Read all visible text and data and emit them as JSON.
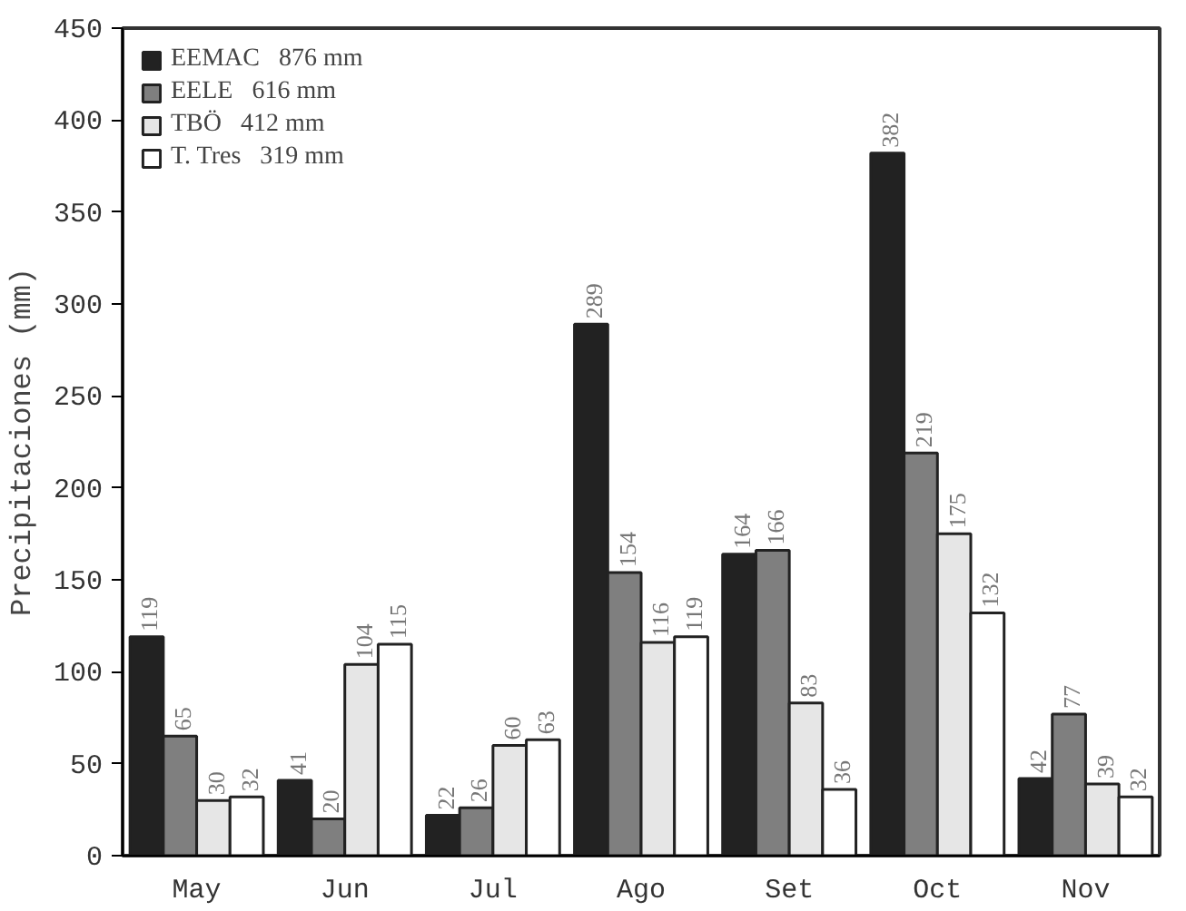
{
  "chart_data": {
    "type": "bar",
    "ylabel": "Precipitaciones (mm)",
    "categories": [
      "May",
      "Jun",
      "Jul",
      "Ago",
      "Set",
      "Oct",
      "Nov"
    ],
    "series": [
      {
        "name": "EEMAC   876 mm",
        "color": "#222222",
        "values": [
          119,
          41,
          22,
          289,
          164,
          382,
          42
        ]
      },
      {
        "name": "EELE   616 mm",
        "color": "#7f7f7f",
        "values": [
          65,
          20,
          26,
          154,
          166,
          219,
          77
        ]
      },
      {
        "name": "TBÖ   412 mm",
        "color": "#e6e6e6",
        "values": [
          30,
          104,
          60,
          116,
          83,
          175,
          39
        ]
      },
      {
        "name": "T. Tres   319 mm",
        "color": "#ffffff",
        "values": [
          32,
          115,
          63,
          119,
          36,
          132,
          32
        ]
      }
    ],
    "ylim": [
      0,
      450
    ],
    "yticks": [
      0,
      50,
      100,
      150,
      200,
      250,
      300,
      350,
      400,
      450
    ],
    "data_labels": true,
    "legend": "top left",
    "grid": false
  }
}
